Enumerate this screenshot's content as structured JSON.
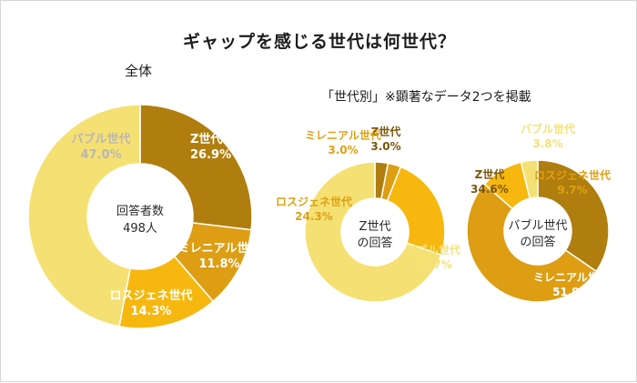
{
  "title": "ギャップを感じる世代は何世代？",
  "chart_left_title": "全体",
  "chart_right_title": "「世代別」※顕著なデータ2つを掲載",
  "colors": {
    "z": "#b07e0e",
    "millennial": "#dd9e14",
    "lostgen": "#f6b80f",
    "bubble": "#f5e073",
    "label_white": "#ffffff",
    "label_light": "#f3e27a",
    "label_orange": "#e0a010",
    "label_dark": "#7a5608",
    "label_gray": "#b7b7b7"
  },
  "chart_data": [
    {
      "type": "pie",
      "title": "全体",
      "center_label": [
        "回答者数",
        "498人"
      ],
      "categories": [
        "Z世代",
        "ミレニアル世代",
        "ロスジェネ世代",
        "バブル世代"
      ],
      "values": [
        26.9,
        11.8,
        14.3,
        47.0
      ],
      "value_labels": [
        "26.9%",
        "11.8%",
        "14.3%",
        "47.0%"
      ]
    },
    {
      "type": "pie",
      "title": "Z世代の回答",
      "center_label": [
        "Z世代",
        "の回答"
      ],
      "categories": [
        "Z世代",
        "ミレニアル世代",
        "ロスジェネ世代",
        "バブル世代"
      ],
      "values": [
        3.0,
        3.0,
        24.3,
        69.7
      ],
      "value_labels": [
        "3.0%",
        "3.0%",
        "24.3%",
        "69.7%"
      ]
    },
    {
      "type": "pie",
      "title": "バブル世代の回答",
      "center_label": [
        "バブル世代",
        "の回答"
      ],
      "categories": [
        "Z世代",
        "ミレニアル世代",
        "ロスジェネ世代",
        "バブル世代"
      ],
      "values": [
        34.6,
        51.9,
        9.7,
        3.8
      ],
      "value_labels": [
        "34.6%",
        "51.9%",
        "9.7%",
        "3.8%"
      ]
    }
  ]
}
